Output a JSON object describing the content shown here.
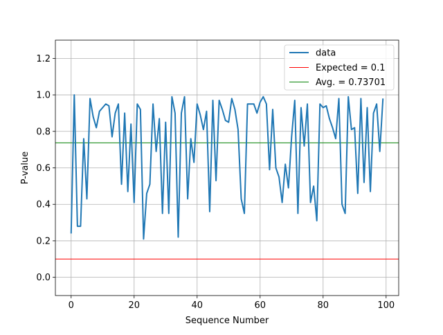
{
  "chart_data": {
    "type": "line",
    "title": "",
    "xlabel": "Sequence Number",
    "ylabel": "P-value",
    "xlim": [
      -5,
      104
    ],
    "ylim": [
      -0.1,
      1.3
    ],
    "xticks": [
      0,
      20,
      40,
      60,
      80,
      100
    ],
    "yticks": [
      0.0,
      0.2,
      0.4,
      0.6,
      0.8,
      1.0,
      1.2
    ],
    "xtick_labels": [
      "0",
      "20",
      "40",
      "60",
      "80",
      "100"
    ],
    "ytick_labels": [
      "0.0",
      "0.2",
      "0.4",
      "0.6",
      "0.8",
      "1.0",
      "1.2"
    ],
    "grid": true,
    "legend_position": "top-right",
    "series": [
      {
        "name": "data",
        "color": "#1f77b4",
        "x": [
          0,
          1,
          2,
          3,
          4,
          5,
          6,
          7,
          8,
          9,
          10,
          11,
          12,
          13,
          14,
          15,
          16,
          17,
          18,
          19,
          20,
          21,
          22,
          23,
          24,
          25,
          26,
          27,
          28,
          29,
          30,
          31,
          32,
          33,
          34,
          35,
          36,
          37,
          38,
          39,
          40,
          41,
          42,
          43,
          44,
          45,
          46,
          47,
          48,
          49,
          50,
          51,
          52,
          53,
          54,
          55,
          56,
          57,
          58,
          59,
          60,
          61,
          62,
          63,
          64,
          65,
          66,
          67,
          68,
          69,
          70,
          71,
          72,
          73,
          74,
          75,
          76,
          77,
          78,
          79,
          80,
          81,
          82,
          83,
          84,
          85,
          86,
          87,
          88,
          89,
          90,
          91,
          92,
          93,
          94,
          95,
          96,
          97,
          98,
          99
        ],
        "y": [
          0.24,
          1.0,
          0.28,
          0.28,
          0.76,
          0.43,
          0.98,
          0.88,
          0.82,
          0.91,
          0.93,
          0.95,
          0.94,
          0.77,
          0.9,
          0.95,
          0.51,
          0.9,
          0.47,
          0.84,
          0.41,
          0.95,
          0.92,
          0.21,
          0.46,
          0.51,
          0.95,
          0.69,
          0.87,
          0.35,
          0.85,
          0.35,
          0.99,
          0.9,
          0.22,
          0.9,
          0.99,
          0.43,
          0.76,
          0.63,
          0.95,
          0.89,
          0.81,
          0.91,
          0.36,
          0.97,
          0.53,
          0.97,
          0.92,
          0.86,
          0.85,
          0.98,
          0.92,
          0.81,
          0.43,
          0.35,
          0.95,
          0.95,
          0.95,
          0.9,
          0.96,
          0.99,
          0.95,
          0.59,
          0.92,
          0.6,
          0.55,
          0.41,
          0.62,
          0.49,
          0.77,
          0.97,
          0.35,
          0.93,
          0.72,
          0.95,
          0.41,
          0.5,
          0.31,
          0.95,
          0.93,
          0.94,
          0.87,
          0.82,
          0.76,
          0.98,
          0.4,
          0.35,
          0.99,
          0.81,
          0.82,
          0.46,
          0.98,
          0.52,
          0.93,
          0.47,
          0.9,
          0.95,
          0.69,
          0.98
        ]
      },
      {
        "name": "Expected = 0.1",
        "color": "#ff0000",
        "hline": 0.1
      },
      {
        "name": "Avg. = 0.73701",
        "color": "#008000",
        "hline": 0.73701
      }
    ]
  }
}
